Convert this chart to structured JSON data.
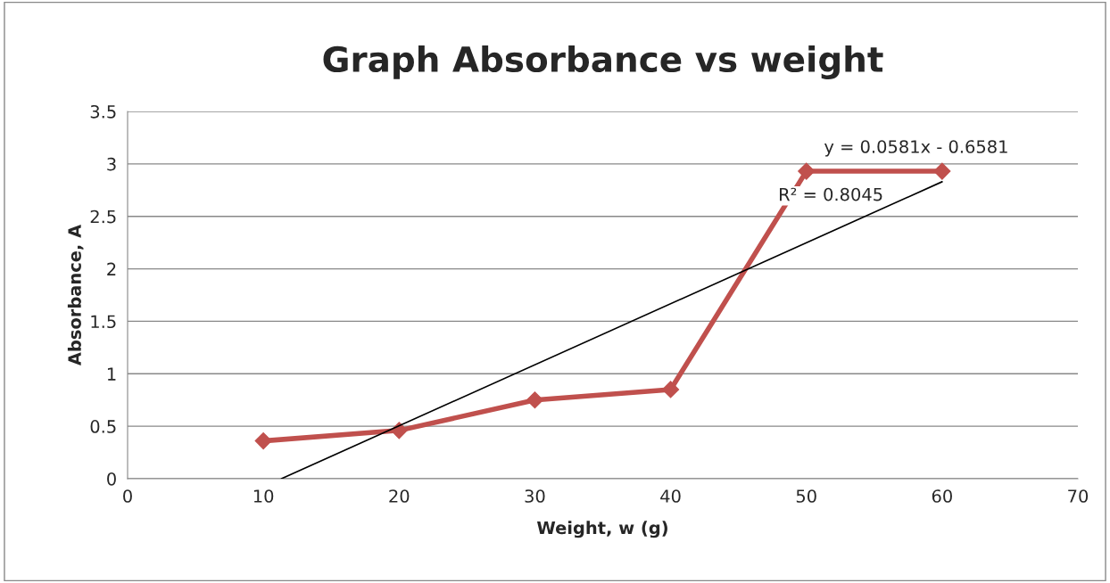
{
  "chart_data": {
    "type": "line",
    "title": "Graph Absorbance vs weight",
    "xlabel": "Weight, w (g)",
    "ylabel": "Absorbance, A",
    "xlim": [
      0,
      70
    ],
    "xticks": [
      0,
      10,
      20,
      30,
      40,
      50,
      60,
      70
    ],
    "ylim": [
      0,
      3.5
    ],
    "yticks": [
      0,
      0.5,
      1,
      1.5,
      2,
      2.5,
      3,
      3.5
    ],
    "grid": "y",
    "legend": false,
    "series": [
      {
        "color": "#c0504d",
        "marker": "diamond",
        "line_style": "solid",
        "x": [
          10,
          20,
          30,
          40,
          50,
          60
        ],
        "values": [
          0.36,
          0.46,
          0.75,
          0.85,
          2.93,
          2.93
        ]
      },
      {
        "color": "#000000",
        "marker": "none",
        "line_style": "solid",
        "x": [
          11.33,
          60
        ],
        "values": [
          0,
          2.83
        ]
      }
    ],
    "annotations": [
      "y = 0.0581x - 0.6581",
      "R² = 0.8045"
    ]
  }
}
